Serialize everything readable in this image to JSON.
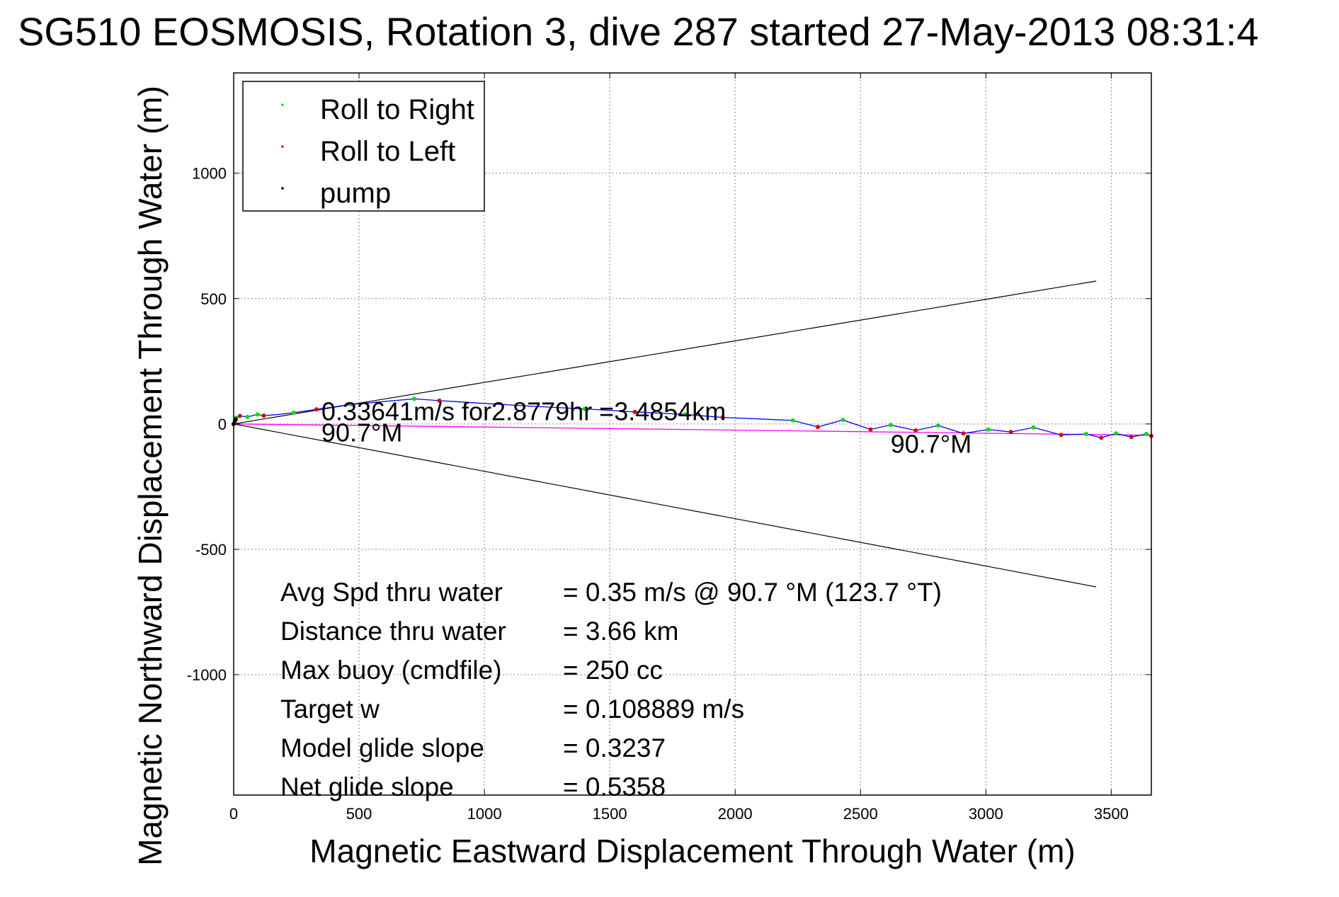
{
  "chart_data": {
    "type": "scatter",
    "title": "SG510 EOSMOSIS, Rotation 3, dive 287 started 27-May-2013 08:31:4",
    "xlabel": "Magnetic Eastward Displacement Through Water (m)",
    "ylabel": "Magnetic Northward Displacement Through Water (m)",
    "xlim": [
      0,
      3660
    ],
    "ylim": [
      -1480,
      1400
    ],
    "xticks": [
      0,
      500,
      1000,
      1500,
      2000,
      2500,
      3000,
      3500
    ],
    "yticks": [
      -1000,
      -500,
      0,
      500,
      1000
    ],
    "grid": true,
    "legend": {
      "placement": "top-left",
      "entries": [
        {
          "label": "Roll to Right",
          "color": "#00dd00"
        },
        {
          "label": "Roll to Left",
          "color": "#dd0000"
        },
        {
          "label": "pump",
          "color": "#000000"
        }
      ]
    },
    "track": {
      "color": "#0000ff",
      "points": [
        [
          0,
          0
        ],
        [
          10,
          25
        ],
        [
          25,
          32
        ],
        [
          55,
          28
        ],
        [
          95,
          38
        ],
        [
          120,
          33
        ],
        [
          180,
          38
        ],
        [
          240,
          45
        ],
        [
          330,
          58
        ],
        [
          470,
          78
        ],
        [
          720,
          100
        ],
        [
          820,
          93
        ],
        [
          1000,
          82
        ],
        [
          1200,
          70
        ],
        [
          1400,
          60
        ],
        [
          1600,
          48
        ],
        [
          1800,
          38
        ],
        [
          1950,
          26
        ],
        [
          2100,
          20
        ],
        [
          2230,
          14
        ],
        [
          2330,
          -12
        ],
        [
          2430,
          16
        ],
        [
          2540,
          -22
        ],
        [
          2620,
          -4
        ],
        [
          2720,
          -26
        ],
        [
          2810,
          -6
        ],
        [
          2910,
          -38
        ],
        [
          3010,
          -22
        ],
        [
          3100,
          -32
        ],
        [
          3190,
          -14
        ],
        [
          3300,
          -44
        ],
        [
          3400,
          -40
        ],
        [
          3460,
          -55
        ],
        [
          3520,
          -38
        ],
        [
          3580,
          -52
        ],
        [
          3640,
          -40
        ],
        [
          3660,
          -48
        ]
      ]
    },
    "series": [
      {
        "name": "Roll to Right",
        "color": "#00dd00",
        "points": [
          [
            10,
            25
          ],
          [
            55,
            28
          ],
          [
            95,
            38
          ],
          [
            240,
            45
          ],
          [
            470,
            78
          ],
          [
            720,
            100
          ],
          [
            1400,
            60
          ],
          [
            1800,
            38
          ],
          [
            2230,
            14
          ],
          [
            2430,
            16
          ],
          [
            2620,
            -4
          ],
          [
            2810,
            -6
          ],
          [
            3010,
            -22
          ],
          [
            3190,
            -14
          ],
          [
            3400,
            -40
          ],
          [
            3520,
            -38
          ],
          [
            3640,
            -40
          ]
        ]
      },
      {
        "name": "Roll to Left",
        "color": "#dd0000",
        "points": [
          [
            0,
            0
          ],
          [
            5,
            10
          ],
          [
            25,
            32
          ],
          [
            120,
            33
          ],
          [
            330,
            58
          ],
          [
            820,
            93
          ],
          [
            1600,
            48
          ],
          [
            1950,
            26
          ],
          [
            2330,
            -12
          ],
          [
            2540,
            -22
          ],
          [
            2720,
            -26
          ],
          [
            2910,
            -38
          ],
          [
            3100,
            -32
          ],
          [
            3300,
            -44
          ],
          [
            3460,
            -55
          ],
          [
            3580,
            -52
          ],
          [
            3660,
            -48
          ]
        ]
      },
      {
        "name": "pump",
        "color": "#000000",
        "points": [
          [
            0,
            0
          ],
          [
            8,
            18
          ]
        ]
      }
    ],
    "heading_line": {
      "color": "#ff00ff",
      "points": [
        [
          0,
          0
        ],
        [
          3660,
          -45
        ]
      ]
    },
    "cone_lines": [
      {
        "color": "#000000",
        "points": [
          [
            0,
            0
          ],
          [
            3440,
            570
          ]
        ]
      },
      {
        "color": "#000000",
        "points": [
          [
            0,
            0
          ],
          [
            3440,
            -650
          ]
        ]
      }
    ],
    "annotations": [
      {
        "text": "0.33641m/s for2.8779hr =3.4854km",
        "x": 350,
        "y": 15
      },
      {
        "text": "90.7°M",
        "x": 350,
        "y": -70
      },
      {
        "text": "90.7°M",
        "x": 2620,
        "y": -115
      }
    ],
    "stats": [
      {
        "label": "Avg Spd thru water",
        "value": "=  0.35 m/s @  90.7 °M (123.7 °T)"
      },
      {
        "label": "Distance thru water",
        "value": "=  3.66 km"
      },
      {
        "label": "Max buoy (cmdfile)",
        "value": "= 250 cc"
      },
      {
        "label": "Target w",
        "value": "= 0.108889 m/s"
      },
      {
        "label": "Model glide slope",
        "value": "= 0.3237"
      },
      {
        "label": "Net glide slope",
        "value": "= 0.5358"
      }
    ]
  }
}
